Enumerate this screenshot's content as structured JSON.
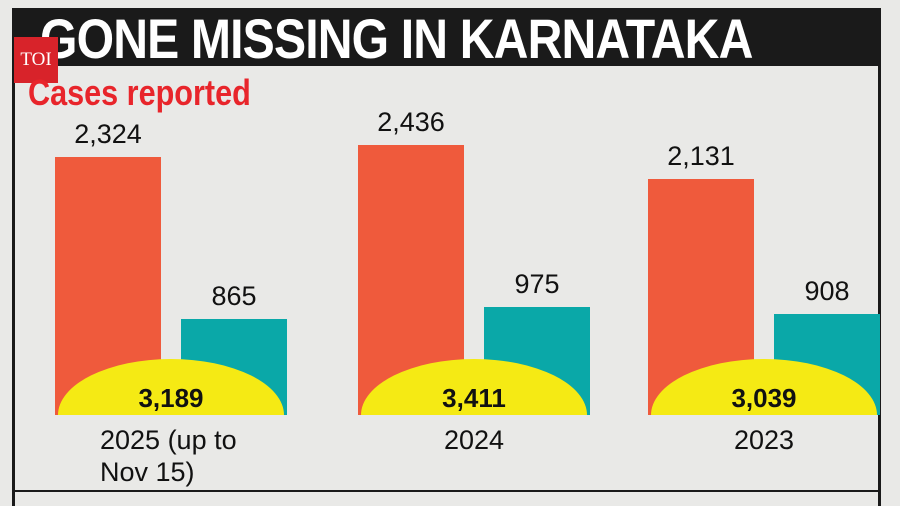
{
  "logo": "TOI",
  "chart_data": {
    "type": "bar",
    "title": "GONE MISSING IN KARNATAKA",
    "subtitle": "Cases reported",
    "categories": [
      "2025 (up to Nov 15)",
      "2024",
      "2023"
    ],
    "series": [
      {
        "color": "#ef5a3c",
        "values": [
          2324,
          2436,
          2131
        ],
        "value_labels": [
          "2,324",
          "2,436",
          "2,131"
        ]
      },
      {
        "color": "#0aa8a8",
        "values": [
          865,
          975,
          908
        ],
        "value_labels": [
          "865",
          "975",
          "908"
        ]
      }
    ],
    "totals": {
      "color": "#f5ea14",
      "values": [
        3189,
        3411,
        3039
      ],
      "value_labels": [
        "3,189",
        "3,411",
        "3,039"
      ]
    }
  }
}
